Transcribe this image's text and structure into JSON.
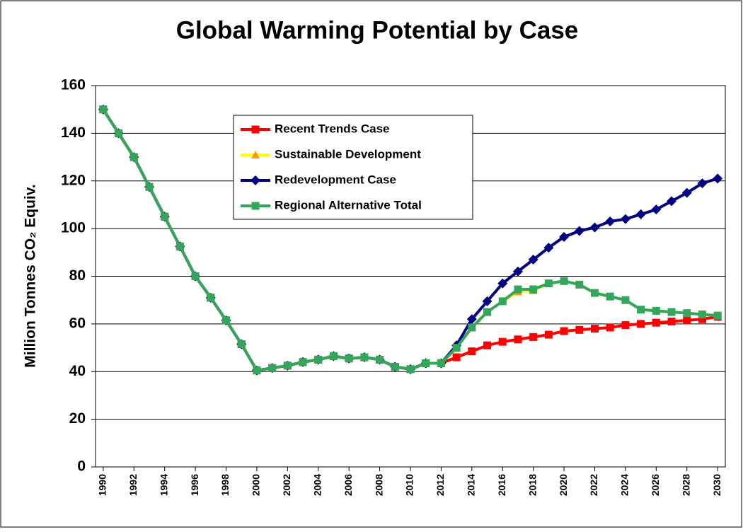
{
  "chart_data": {
    "type": "line",
    "title": "Global Warming Potential by Case",
    "y_label": "Million Tonnes CO₂ Equiv.",
    "x": [
      1990,
      1991,
      1992,
      1993,
      1994,
      1995,
      1996,
      1997,
      1998,
      1999,
      2000,
      2001,
      2002,
      2003,
      2004,
      2005,
      2006,
      2007,
      2008,
      2009,
      2010,
      2011,
      2012,
      2013,
      2014,
      2015,
      2016,
      2017,
      2018,
      2019,
      2020,
      2021,
      2022,
      2023,
      2024,
      2025,
      2026,
      2027,
      2028,
      2029,
      2030
    ],
    "xlim": [
      1989.5,
      2030.5
    ],
    "xticks": [
      1990,
      1992,
      1994,
      1996,
      1998,
      2000,
      2002,
      2004,
      2006,
      2008,
      2010,
      2012,
      2014,
      2016,
      2018,
      2020,
      2022,
      2024,
      2026,
      2028,
      2030
    ],
    "ylim": [
      0,
      160
    ],
    "yticks": [
      0,
      20,
      40,
      60,
      80,
      100,
      120,
      140,
      160
    ],
    "grid": true,
    "series": [
      {
        "name": "Recent Trends Case",
        "color": "#ff0000",
        "marker": "square",
        "values": [
          150,
          140,
          130,
          117.5,
          105,
          92.5,
          80,
          71,
          61.5,
          51.5,
          40.5,
          41.5,
          42.5,
          44,
          45,
          46.5,
          45.5,
          46,
          45,
          42,
          41,
          43.5,
          43.5,
          46,
          48.5,
          51,
          52.5,
          53.5,
          54.5,
          55.5,
          57,
          57.5,
          58,
          58.5,
          59.5,
          60,
          60.5,
          61,
          61.5,
          62,
          63
        ]
      },
      {
        "name": "Sustainable Development",
        "color": "#ffff00",
        "marker_color": "#ff9900",
        "marker": "triangle",
        "values": [
          150,
          140,
          130,
          117.5,
          105,
          92.5,
          80,
          71,
          61.5,
          51.5,
          40.5,
          41.5,
          42.5,
          44,
          45,
          46.5,
          45.5,
          46,
          45,
          42,
          41,
          43.5,
          43.5,
          50,
          58.5,
          65,
          69.5,
          73.5,
          74,
          77,
          78,
          76.5,
          73,
          71.5,
          70,
          66,
          65.5,
          65,
          64.5,
          64,
          63.5
        ]
      },
      {
        "name": "Redevelopment Case",
        "color": "#000080",
        "marker": "diamond",
        "values": [
          150,
          140,
          130,
          117.5,
          105,
          92.5,
          80,
          71,
          61.5,
          51.5,
          40.5,
          41.5,
          42.5,
          44,
          45,
          46.5,
          45.5,
          46,
          45,
          42,
          41,
          43.5,
          43.5,
          51,
          62,
          69.5,
          77,
          82,
          87,
          92,
          96.5,
          99,
          100.5,
          103,
          104,
          106,
          108,
          111.5,
          115,
          119,
          121
        ]
      },
      {
        "name": "Regional Alternative Total",
        "color": "#33a65c",
        "marker": "square",
        "values": [
          150,
          140,
          130,
          117.5,
          105,
          92.5,
          80,
          71,
          61.5,
          51.5,
          40.5,
          41.5,
          42.5,
          44,
          45,
          46.5,
          45.5,
          46,
          45,
          42,
          41,
          43.5,
          43.5,
          50,
          58.5,
          65,
          69.5,
          74.5,
          74.5,
          77,
          78,
          76.5,
          73,
          71.5,
          70,
          66,
          65.5,
          65,
          64.5,
          64,
          63.5
        ]
      }
    ]
  }
}
